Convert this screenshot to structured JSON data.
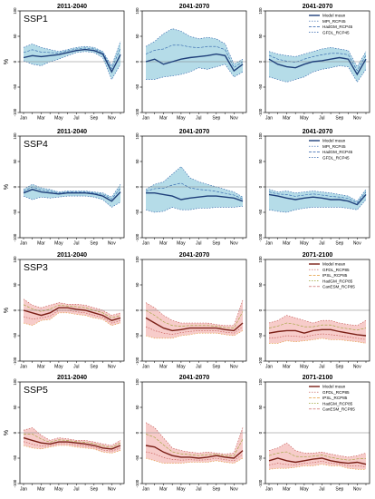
{
  "figure": {
    "ylabel": "%",
    "panel_rows": [
      "SSP1",
      "SSP4",
      "SSP3",
      "SSP5"
    ],
    "colors": {
      "blue_fill": "#add8e6",
      "blue_mean": "#1f3f7a",
      "blue_gcm": "#2a5ea8",
      "red_fill": "#f6c7c4",
      "red_mean": "#7a1f16",
      "red_gcm": "#c0504d",
      "orange_gcm": "#e39a3a",
      "olive_gcm": "#9aa032",
      "zero_line": "#7f7f7f"
    }
  },
  "chart_data": [
    {
      "id": "ssp1",
      "label": "SSP1",
      "type": "line",
      "x": [
        "Jan",
        "Feb",
        "Mar",
        "Apr",
        "May",
        "Jun",
        "Jul",
        "Aug",
        "Sep",
        "Oct",
        "Nov",
        "Dec"
      ],
      "xticks": [
        "Jan",
        "Mar",
        "May",
        "Jul",
        "Sep",
        "Nov"
      ],
      "ylim": [
        -100,
        100
      ],
      "yticks": [
        -100,
        -50,
        0,
        50,
        100
      ],
      "titles": [
        "2011-2040",
        "2041-2070",
        "2041-2070"
      ],
      "legend_panel": 2,
      "legend": [
        "Model mean",
        "MPI_RCP45",
        "HadGM_RCP45",
        "GFDL_RCP45"
      ],
      "palette": "blue",
      "panels": [
        {
          "mean": [
            8,
            12,
            10,
            12,
            14,
            18,
            22,
            24,
            22,
            15,
            -20,
            14
          ],
          "low": [
            2,
            -5,
            -8,
            0,
            5,
            12,
            18,
            20,
            18,
            8,
            -35,
            -5
          ],
          "high": [
            28,
            35,
            28,
            24,
            20,
            24,
            28,
            30,
            28,
            20,
            -8,
            40
          ]
        },
        {
          "mean": [
            0,
            5,
            -5,
            0,
            5,
            8,
            10,
            12,
            15,
            12,
            -18,
            -5
          ],
          "low": [
            -35,
            -35,
            -30,
            -28,
            -25,
            -20,
            -12,
            -15,
            -10,
            -5,
            -30,
            -20
          ],
          "high": [
            30,
            40,
            55,
            65,
            60,
            50,
            45,
            48,
            45,
            35,
            -5,
            5
          ]
        },
        {
          "mean": [
            5,
            -5,
            -10,
            -12,
            -5,
            0,
            2,
            5,
            8,
            5,
            -25,
            5
          ],
          "low": [
            -30,
            -35,
            -40,
            -35,
            -30,
            -20,
            -15,
            -12,
            -8,
            -10,
            -40,
            -15
          ],
          "high": [
            20,
            15,
            12,
            10,
            15,
            20,
            25,
            28,
            25,
            22,
            -10,
            20
          ]
        }
      ]
    },
    {
      "id": "ssp4",
      "label": "SSP4",
      "type": "line",
      "x": [
        "Jan",
        "Feb",
        "Mar",
        "Apr",
        "May",
        "Jun",
        "Jul",
        "Aug",
        "Sep",
        "Oct",
        "Nov",
        "Dec"
      ],
      "xticks": [
        "Jan",
        "Mar",
        "May",
        "Jul",
        "Sep",
        "Nov"
      ],
      "ylim": [
        -100,
        100
      ],
      "yticks": [
        -100,
        -50,
        0,
        50,
        100
      ],
      "titles": [
        "2011-2040",
        "2041-2070",
        "2041-2070"
      ],
      "legend_panel": 2,
      "legend": [
        "Model mean",
        "MPI_RCP45",
        "HadGM_RCP45",
        "GFDL_RCP45"
      ],
      "palette": "blue",
      "panels": [
        {
          "mean": [
            -12,
            -5,
            -10,
            -12,
            -14,
            -12,
            -12,
            -12,
            -14,
            -18,
            -28,
            -10
          ],
          "low": [
            -18,
            -25,
            -20,
            -22,
            -20,
            -18,
            -18,
            -18,
            -20,
            -25,
            -40,
            -30
          ],
          "high": [
            -5,
            5,
            -2,
            -5,
            -10,
            -8,
            -8,
            -8,
            -10,
            -12,
            -20,
            5
          ]
        },
        {
          "mean": [
            -12,
            -12,
            -15,
            -18,
            -25,
            -22,
            -20,
            -18,
            -18,
            -20,
            -22,
            -28
          ],
          "low": [
            -45,
            -50,
            -48,
            -40,
            -45,
            -45,
            -42,
            -42,
            -40,
            -40,
            -40,
            -38
          ],
          "high": [
            -5,
            5,
            10,
            25,
            40,
            18,
            10,
            5,
            0,
            -5,
            -10,
            -20
          ]
        },
        {
          "mean": [
            -15,
            -18,
            -22,
            -25,
            -22,
            -20,
            -22,
            -25,
            -25,
            -28,
            -35,
            -15
          ],
          "low": [
            -45,
            -48,
            -50,
            -45,
            -42,
            -40,
            -40,
            -40,
            -40,
            -42,
            -45,
            -25
          ],
          "high": [
            -5,
            -10,
            -8,
            -12,
            -10,
            -8,
            -10,
            -12,
            -15,
            -18,
            -28,
            -5
          ]
        }
      ]
    },
    {
      "id": "ssp3",
      "label": "SSP3",
      "type": "line",
      "x": [
        "Jan",
        "Feb",
        "Mar",
        "Apr",
        "May",
        "Jun",
        "Jul",
        "Aug",
        "Sep",
        "Oct",
        "Nov",
        "Dec"
      ],
      "xticks": [
        "Jan",
        "Mar",
        "May",
        "Jul",
        "Sep",
        "Nov"
      ],
      "ylim": [
        -100,
        100
      ],
      "yticks": [
        -100,
        -50,
        0,
        50,
        100
      ],
      "titles": [
        "2011-2040",
        "2041-2070",
        "2071-2100"
      ],
      "legend_panel": 2,
      "legend": [
        "Model mean",
        "GFDL_RCP85",
        "IPSL_RCP85",
        "HadGM_RCP85",
        "CanESM_RCP85"
      ],
      "palette": "red",
      "panels": [
        {
          "mean": [
            0,
            -5,
            -10,
            -5,
            5,
            5,
            2,
            0,
            -5,
            -10,
            -20,
            -15
          ],
          "low": [
            -25,
            -30,
            -20,
            -18,
            -5,
            -5,
            -8,
            -10,
            -15,
            -18,
            -30,
            -25
          ],
          "high": [
            22,
            10,
            5,
            10,
            15,
            12,
            12,
            10,
            5,
            0,
            -10,
            -5
          ]
        },
        {
          "mean": [
            -15,
            -25,
            -35,
            -40,
            -38,
            -35,
            -35,
            -35,
            -35,
            -38,
            -40,
            -25
          ],
          "low": [
            -50,
            -55,
            -55,
            -55,
            -50,
            -48,
            -45,
            -45,
            -45,
            -48,
            -50,
            -40
          ],
          "high": [
            15,
            5,
            -10,
            -20,
            -25,
            -25,
            -25,
            -25,
            -28,
            -30,
            -30,
            20
          ]
        },
        {
          "mean": [
            -45,
            -42,
            -40,
            -40,
            -45,
            -40,
            -38,
            -38,
            -42,
            -45,
            -48,
            -50
          ],
          "low": [
            -65,
            -65,
            -60,
            -62,
            -60,
            -58,
            -55,
            -58,
            -58,
            -60,
            -62,
            -65
          ],
          "high": [
            -25,
            -20,
            -10,
            -15,
            -20,
            -25,
            -20,
            -20,
            -25,
            -28,
            -30,
            -20
          ]
        }
      ]
    },
    {
      "id": "ssp5",
      "label": "SSP5",
      "type": "line",
      "x": [
        "Jan",
        "Feb",
        "Mar",
        "Apr",
        "May",
        "Jun",
        "Jul",
        "Aug",
        "Sep",
        "Oct",
        "Nov",
        "Dec"
      ],
      "xticks": [
        "Jan",
        "Mar",
        "May",
        "Jul",
        "Sep",
        "Nov"
      ],
      "ylim": [
        -100,
        100
      ],
      "yticks": [
        -100,
        -50,
        0,
        50,
        100
      ],
      "titles": [
        "2011-2040",
        "2041-2070",
        "2071-2100"
      ],
      "legend_panel": 2,
      "legend": [
        "Model mean",
        "GFDL_RCP85",
        "IPSL_RCP85",
        "HadGM_RCP85",
        "CanESM_RCP85"
      ],
      "palette": "red",
      "panels": [
        {
          "mean": [
            -10,
            -15,
            -20,
            -22,
            -18,
            -18,
            -20,
            -22,
            -25,
            -30,
            -32,
            -25
          ],
          "low": [
            -25,
            -30,
            -32,
            -28,
            -25,
            -25,
            -28,
            -30,
            -32,
            -38,
            -40,
            -35
          ],
          "high": [
            5,
            10,
            -5,
            -15,
            -10,
            -12,
            -15,
            -15,
            -18,
            -22,
            -25,
            -15
          ]
        },
        {
          "mean": [
            -25,
            -28,
            -38,
            -45,
            -48,
            -48,
            -50,
            -48,
            -45,
            -48,
            -50,
            -35
          ],
          "low": [
            -50,
            -55,
            -60,
            -60,
            -60,
            -58,
            -58,
            -58,
            -55,
            -58,
            -60,
            -50
          ],
          "high": [
            20,
            10,
            -10,
            -30,
            -35,
            -38,
            -40,
            -38,
            -40,
            -42,
            -40,
            10
          ]
        },
        {
          "mean": [
            -55,
            -50,
            -55,
            -58,
            -55,
            -52,
            -50,
            -55,
            -58,
            -60,
            -58,
            -62
          ],
          "low": [
            -72,
            -70,
            -70,
            -68,
            -65,
            -65,
            -62,
            -65,
            -65,
            -70,
            -72,
            -72
          ],
          "high": [
            -35,
            -30,
            -20,
            -35,
            -40,
            -40,
            -38,
            -42,
            -45,
            -48,
            -45,
            -40
          ]
        }
      ]
    }
  ]
}
